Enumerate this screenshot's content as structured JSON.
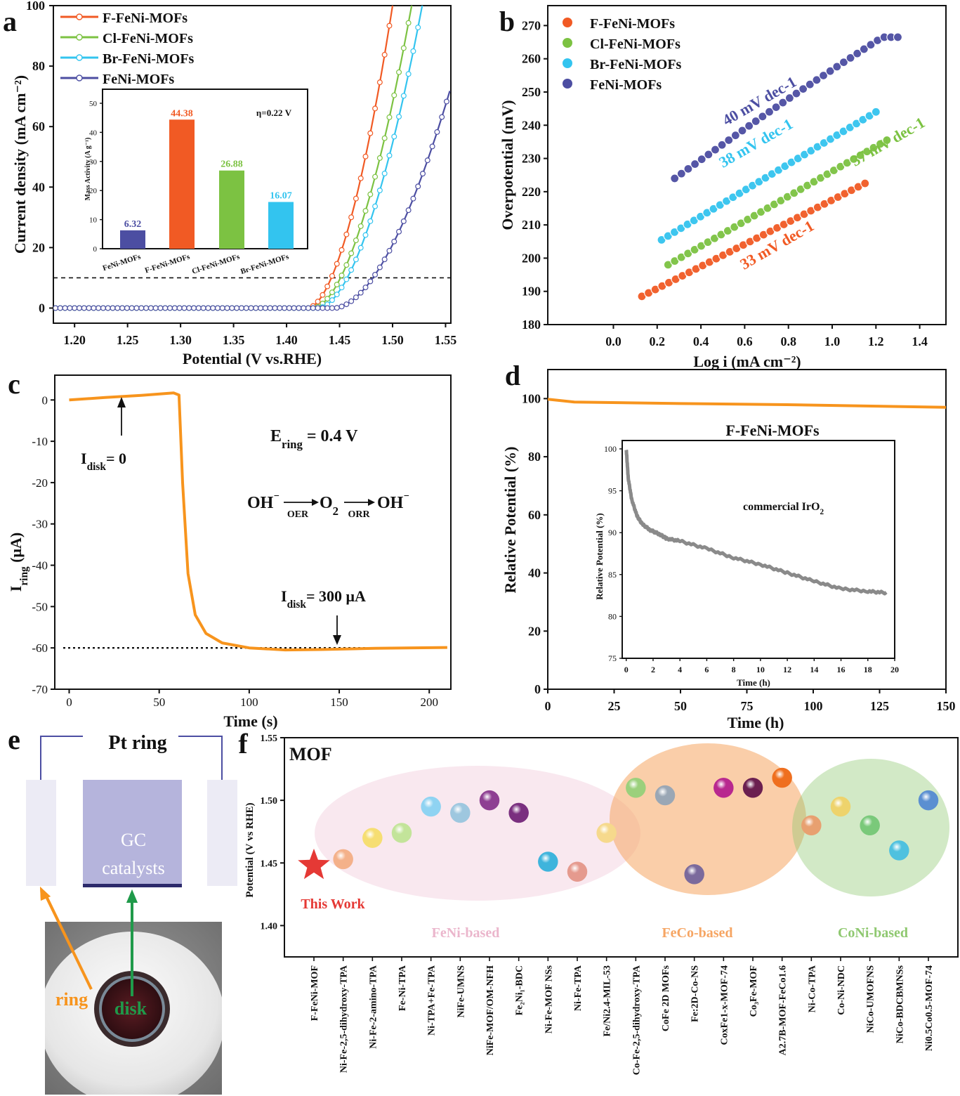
{
  "colors": {
    "F": "#f15a24",
    "Cl": "#7cc242",
    "Br": "#33c4ef",
    "FeNi": "#4c4ea2",
    "orange": "#f7941d",
    "gray": "#8a8a8a"
  },
  "panel_letters": [
    "a",
    "b",
    "c",
    "d",
    "e",
    "f"
  ],
  "chart_data": [
    {
      "id": "a",
      "type": "line",
      "xlabel": "Potential (V vs.RHE)",
      "ylabel": "Current density (mA cm⁻²)",
      "xlim": [
        1.18,
        1.555
      ],
      "ylim": [
        -5,
        100
      ],
      "xticks": [
        "1.20",
        "1.25",
        "1.30",
        "1.35",
        "1.40",
        "1.45",
        "1.50",
        "1.55"
      ],
      "yticks": [
        "0",
        "20",
        "40",
        "60",
        "80",
        "100"
      ],
      "reference_line": {
        "y": 10,
        "style": "dashed"
      },
      "series": [
        {
          "name": "F-FeNi-MOFs",
          "color": "#f15a24",
          "onset": 1.42,
          "x_at_100": 1.5
        },
        {
          "name": "Cl-FeNi-MOFs",
          "color": "#7cc242",
          "onset": 1.425,
          "x_at_100": 1.518
        },
        {
          "name": "Br-FeNi-MOFs",
          "color": "#33c4ef",
          "onset": 1.43,
          "x_at_100": 1.528
        },
        {
          "name": "FeNi-MOFs",
          "color": "#4c4ea2",
          "onset": 1.445,
          "x_at_73": 1.555
        }
      ],
      "inset": {
        "type": "bar",
        "ylabel": "Mass Activity (A g⁻¹)",
        "annotation": "η=0.22 V",
        "ylim": [
          0,
          50
        ],
        "yticks": [
          "0",
          "10",
          "20",
          "30",
          "40",
          "50"
        ],
        "categories": [
          "FeNi-MOFs",
          "F-FeNi-MOFs",
          "Cl-FeNi-MOFs",
          "Br-FeNi-MOFs"
        ],
        "values": [
          6.32,
          44.38,
          26.88,
          16.07
        ],
        "labels": [
          "6.32",
          "44.38",
          "26.88",
          "16.07"
        ],
        "colors": [
          "#4c4ea2",
          "#f15a24",
          "#7cc242",
          "#33c4ef"
        ]
      }
    },
    {
      "id": "b",
      "type": "scatter",
      "xlabel": "Log i (mA cm⁻²)",
      "ylabel": "Overpotential (mV)",
      "xlim": [
        -0.3,
        1.52
      ],
      "ylim": [
        180,
        276
      ],
      "xticks": [
        "0.0",
        "0.2",
        "0.4",
        "0.6",
        "0.8",
        "1.0",
        "1.2",
        "1.4"
      ],
      "yticks": [
        "180",
        "190",
        "200",
        "210",
        "220",
        "230",
        "240",
        "250",
        "260",
        "270"
      ],
      "series": [
        {
          "name": "F-FeNi-MOFs",
          "color": "#f15a24",
          "x_range": [
            0.13,
            1.15
          ],
          "y_range": [
            188.5,
            222.5
          ],
          "tafel": "33 mV dec-1"
        },
        {
          "name": "Cl-FeNi-MOFs",
          "color": "#7cc242",
          "x_range": [
            0.25,
            1.25
          ],
          "y_range": [
            198,
            235.5
          ],
          "tafel": "37 mV dec-1"
        },
        {
          "name": "Br-FeNi-MOFs",
          "color": "#33c4ef",
          "x_range": [
            0.22,
            1.2
          ],
          "y_range": [
            205.5,
            244
          ],
          "tafel": "38 mV dec-1"
        },
        {
          "name": "FeNi-MOFs",
          "color": "#4c4ea2",
          "x_range": [
            0.28,
            1.3
          ],
          "y_range": [
            224,
            266.5
          ],
          "tafel": "40 mV dec-1"
        }
      ]
    },
    {
      "id": "c",
      "type": "line",
      "xlabel": "Time (s)",
      "ylabel": "I_ring (μA)",
      "xlim": [
        -8,
        212
      ],
      "ylim": [
        -70,
        6
      ],
      "xticks": [
        "0",
        "50",
        "100",
        "150",
        "200"
      ],
      "yticks": [
        "0",
        "-10",
        "-20",
        "-30",
        "-40",
        "-50",
        "-60",
        "-70"
      ],
      "reference_line": {
        "y": -60,
        "style": "dotted"
      },
      "series": [
        {
          "color": "#f7941d",
          "points": [
            [
              0,
              0
            ],
            [
              20,
              0.6
            ],
            [
              40,
              1.1
            ],
            [
              58,
              1.7
            ],
            [
              61,
              1.2
            ],
            [
              63,
              -20
            ],
            [
              66,
              -42
            ],
            [
              70,
              -52
            ],
            [
              76,
              -56.5
            ],
            [
              85,
              -58.8
            ],
            [
              100,
              -60
            ],
            [
              120,
              -60.5
            ],
            [
              140,
              -60.4
            ],
            [
              170,
              -60.1
            ],
            [
              210,
              -59.9
            ]
          ]
        }
      ],
      "annotations": {
        "e_ring_label": "E",
        "e_ring_sub": "ring",
        "e_ring_value": " = 0.4 V",
        "i_disk0_label": "I",
        "i_disk0_sub": "disk",
        "i_disk0_value": "= 0",
        "i_disk300_label": "I",
        "i_disk300_sub": "disk",
        "i_disk300_value": "= 300 μA",
        "reaction": [
          "OH",
          "⁻",
          "O",
          "2",
          "OH",
          "⁻"
        ],
        "oer": "OER",
        "orr": "ORR"
      }
    },
    {
      "id": "d",
      "type": "line",
      "xlabel": "Time (h)",
      "ylabel": "Relative Potential (%)",
      "title": "F-FeNi-MOFs",
      "xlim": [
        0,
        150
      ],
      "ylim": [
        0,
        110
      ],
      "xticks": [
        "0",
        "25",
        "50",
        "75",
        "100",
        "125",
        "150"
      ],
      "yticks": [
        "0",
        "20",
        "40",
        "60",
        "80",
        "100"
      ],
      "series": [
        {
          "color": "#f7941d",
          "points": [
            [
              0,
              99.8
            ],
            [
              5,
              99.3
            ],
            [
              10,
              98.8
            ],
            [
              50,
              98.3
            ],
            [
              90,
              97.9
            ],
            [
              110,
              97.6
            ],
            [
              150,
              97.0
            ]
          ]
        }
      ],
      "inset": {
        "type": "line",
        "label": "commercial IrO",
        "label_sub": "2",
        "xlabel": "Time (h)",
        "ylabel": "Relative Potential (%)",
        "xlim": [
          -0.3,
          20
        ],
        "ylim": [
          75,
          101
        ],
        "xticks": [
          "0",
          "2",
          "4",
          "6",
          "8",
          "10",
          "12",
          "14",
          "16",
          "18",
          "20"
        ],
        "yticks": [
          "75",
          "80",
          "85",
          "90",
          "95",
          "100"
        ],
        "color": "#8a8a8a",
        "points": [
          [
            0,
            100
          ],
          [
            0.15,
            96.5
          ],
          [
            0.4,
            94
          ],
          [
            0.8,
            92
          ],
          [
            1.2,
            91
          ],
          [
            1.8,
            90.3
          ],
          [
            2.5,
            89.8
          ],
          [
            3,
            89.3
          ],
          [
            4,
            89
          ],
          [
            6,
            88.1
          ],
          [
            8,
            87
          ],
          [
            10,
            86.2
          ],
          [
            12,
            85.2
          ],
          [
            14,
            84.2
          ],
          [
            16,
            83.3
          ],
          [
            18,
            83
          ],
          [
            19.5,
            82.8
          ]
        ]
      }
    },
    {
      "id": "f",
      "type": "scatter",
      "ylabel": "Potential (V vs RHE)",
      "ylim": [
        1.375,
        1.55
      ],
      "yticks": [
        "1.40",
        "1.45",
        "1.50",
        "1.55"
      ],
      "title": "MOF",
      "categories": [
        "F-FeNi-MOF",
        "Ni-Fe-2,5-dihydroxy-TPA",
        "Ni-Fe-2-amino-TPA",
        "Fe-Ni-TPA",
        "Ni-TPA+Fe-TPA",
        "NiFe-UMNS",
        "NiFe-MOF/OM-NFH",
        "Fe₂Ni₁-BDC",
        "Ni-Fe-MOF NSs",
        "Ni-Fe-TPA",
        "Fe/Ni2.4-MIL-53",
        "Co-Fe-2,5-dihydroxy-TPA",
        "CoFe 2D MOFs",
        "Fe:2D-Co-NS",
        "CoxFe1-x-MOF-74",
        "Co₃Fe-MOF",
        "A2.7B-MOF-FeCo1.6",
        "Ni-Co-TPA",
        "Co-Ni-NDC",
        "NiCo-UMOFNS",
        "NiCo-BDCBMNSs",
        "Ni0.5Co0.5-MOF-74"
      ],
      "values": [
        1.448,
        1.453,
        1.47,
        1.474,
        1.495,
        1.49,
        1.5,
        1.49,
        1.451,
        1.443,
        1.474,
        1.51,
        1.504,
        1.441,
        1.51,
        1.51,
        1.518,
        1.48,
        1.495,
        1.48,
        1.46,
        1.5
      ],
      "point_colors": [
        "#e53935",
        "#f4b18a",
        "#f6de72",
        "#c3e49a",
        "#8fd3f2",
        "#9ec7df",
        "#8e3f92",
        "#7a2f7f",
        "#3eb4dc",
        "#e59a8e",
        "#f6d98c",
        "#9bd07c",
        "#9aa7b5",
        "#7b6a9c",
        "#b8288f",
        "#6b1f50",
        "#ef6f1f",
        "#e8a070",
        "#eed36c",
        "#7ac97a",
        "#4fc1df",
        "#5b8fd1"
      ],
      "groups": [
        {
          "name": "FeNi-based",
          "color": "#ebb6cc"
        },
        {
          "name": "FeCo-based",
          "color": "#f6a563"
        },
        {
          "name": "CoNi-based",
          "color": "#8fc870"
        }
      ],
      "this_work": "This Work"
    }
  ],
  "panel_e": {
    "pt_ring": "Pt ring",
    "gc": "GC",
    "catalysts": "catalysts",
    "ring": "ring",
    "disk": "disk"
  }
}
